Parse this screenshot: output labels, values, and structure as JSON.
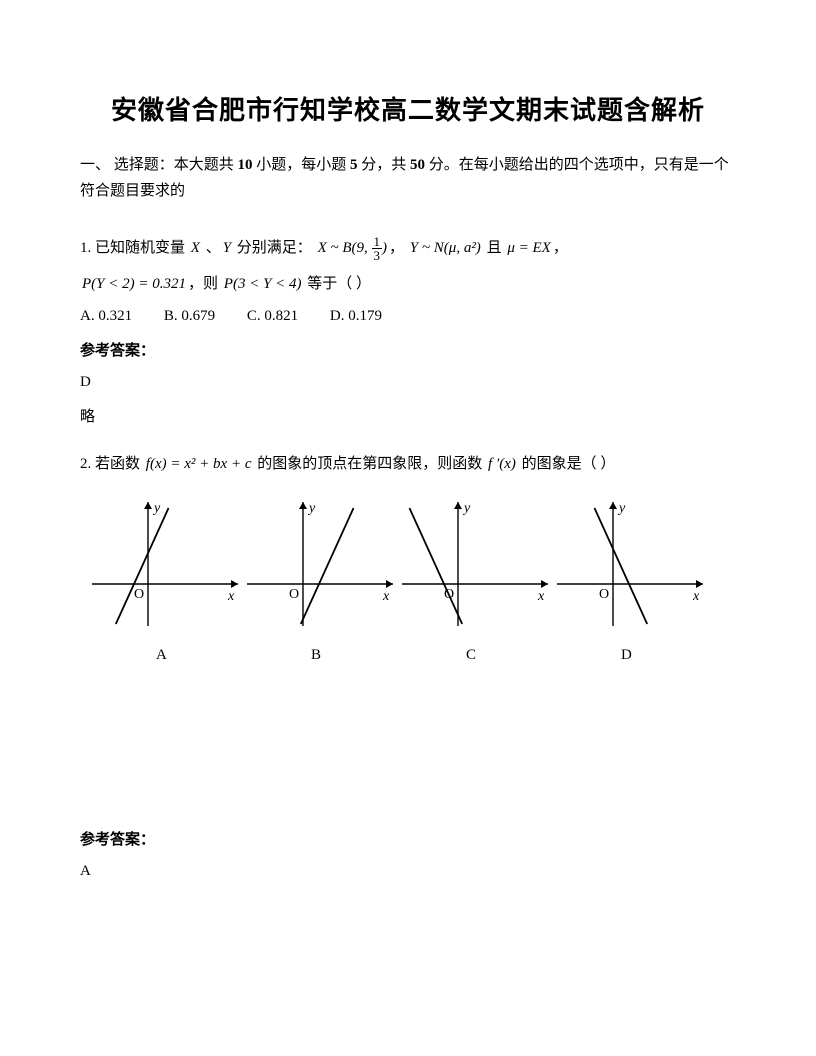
{
  "title": "安徽省合肥市行知学校高二数学文期末试题含解析",
  "section_heading": {
    "prefix": "一、 选择题：本大题共 ",
    "count1": "10",
    "mid1": " 小题，每小题 ",
    "count2": "5",
    "mid2": " 分，共 ",
    "count3": "50",
    "suffix": " 分。在每小题给出的四个选项中，只有是一个符合题目要求的"
  },
  "q1": {
    "leadin": "1. 已知随机变量 ",
    "X": "X",
    "sep1": " 、",
    "Y": "Y",
    "after_vars": " 分别满足：",
    "binom": "X ~ B(9, 1/3)",
    "comma1": "，",
    "normal": "Y ~ N(μ, a²)",
    "and": " 且 ",
    "mu_eq": "μ = EX",
    "comma2": "，",
    "pY": "P(Y < 2) = 0.321",
    "then": "，则 ",
    "p34": "P(3 < Y < 4)",
    "tail": " 等于（    ）",
    "options": {
      "A": "A. 0.321",
      "B": "B. 0.679",
      "C": "C. 0.821",
      "D": "D. 0.179"
    },
    "ans_label": "参考答案：",
    "ans": "D",
    "略": "略"
  },
  "q2": {
    "leadin": "2. 若函数 ",
    "fx": "f(x) = x² + bx + c",
    "mid": " 的图象的顶点在第四象限，则函数 ",
    "fprime": "f′(x)",
    "tail": " 的图象是（  ）",
    "graphs": {
      "labels": [
        "A",
        "B",
        "C",
        "D"
      ],
      "axis_label_x": "x",
      "axis_label_y": "y",
      "origin": "O",
      "line_params": [
        {
          "slope": 2.2,
          "xint": -14
        },
        {
          "slope": 2.2,
          "xint": 16
        },
        {
          "slope": -2.2,
          "xint": -14
        },
        {
          "slope": -2.2,
          "xint": 16
        }
      ],
      "stroke": "#000000",
      "stroke_width": 1.4
    },
    "ans_label": "参考答案：",
    "ans": "A"
  }
}
